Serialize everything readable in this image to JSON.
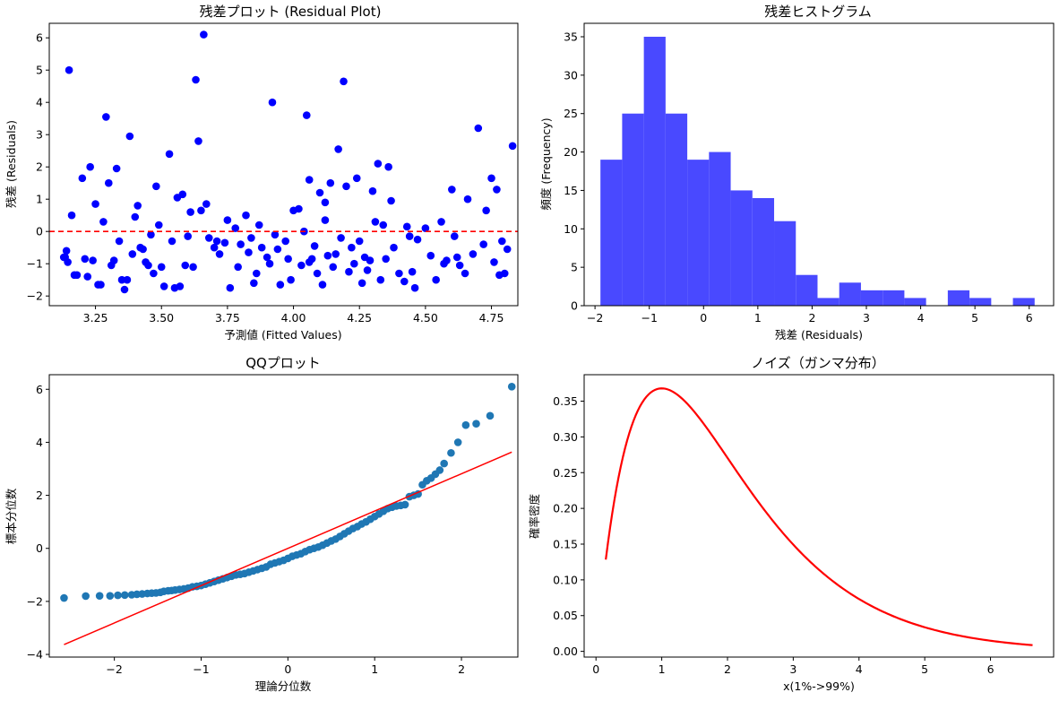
{
  "chart_data": [
    {
      "id": "residual",
      "type": "scatter",
      "title": "残差プロット (Residual Plot)",
      "xlabel": "予測値 (Fitted Values)",
      "ylabel": "残差 (Residuals)",
      "xlim": [
        3.075,
        4.85
      ],
      "ylim": [
        -2.3,
        6.45
      ],
      "xticks": [
        3.25,
        3.5,
        3.75,
        4.0,
        4.25,
        4.5,
        4.75
      ],
      "xtick_labels": [
        "3.25",
        "3.50",
        "3.75",
        "4.00",
        "4.25",
        "4.50",
        "4.75"
      ],
      "yticks": [
        -2,
        -1,
        0,
        1,
        2,
        3,
        4,
        5,
        6
      ],
      "ytick_labels": [
        "−2",
        "−1",
        "0",
        "1",
        "2",
        "3",
        "4",
        "5",
        "6"
      ],
      "point_color": "#0000ff",
      "reference_line": {
        "y": 0,
        "color": "#ff0000",
        "style": "dashed"
      },
      "points": [
        [
          3.15,
          5.0
        ],
        [
          3.14,
          -0.6
        ],
        [
          3.16,
          0.5
        ],
        [
          3.13,
          -0.8
        ],
        [
          3.17,
          -1.35
        ],
        [
          3.2,
          1.65
        ],
        [
          3.22,
          -1.4
        ],
        [
          3.23,
          2.0
        ],
        [
          3.24,
          -0.9
        ],
        [
          3.25,
          0.85
        ],
        [
          3.27,
          -1.65
        ],
        [
          3.29,
          3.55
        ],
        [
          3.3,
          1.5
        ],
        [
          3.31,
          -1.05
        ],
        [
          3.32,
          -0.9
        ],
        [
          3.33,
          1.95
        ],
        [
          3.34,
          -0.3
        ],
        [
          3.35,
          -1.5
        ],
        [
          3.36,
          -1.8
        ],
        [
          3.38,
          2.95
        ],
        [
          3.4,
          0.45
        ],
        [
          3.41,
          0.8
        ],
        [
          3.43,
          -0.55
        ],
        [
          3.44,
          -0.95
        ],
        [
          3.46,
          -0.1
        ],
        [
          3.48,
          1.4
        ],
        [
          3.49,
          0.2
        ],
        [
          3.5,
          -1.1
        ],
        [
          3.51,
          -1.7
        ],
        [
          3.53,
          2.4
        ],
        [
          3.55,
          -1.75
        ],
        [
          3.56,
          1.05
        ],
        [
          3.58,
          1.15
        ],
        [
          3.59,
          -1.05
        ],
        [
          3.6,
          -0.15
        ],
        [
          3.62,
          -1.1
        ],
        [
          3.63,
          4.7
        ],
        [
          3.64,
          2.8
        ],
        [
          3.65,
          0.65
        ],
        [
          3.66,
          6.1
        ],
        [
          3.68,
          -0.2
        ],
        [
          3.7,
          -0.5
        ],
        [
          3.72,
          -0.7
        ],
        [
          3.75,
          0.35
        ],
        [
          3.76,
          -1.75
        ],
        [
          3.78,
          0.1
        ],
        [
          3.8,
          -0.4
        ],
        [
          3.82,
          0.5
        ],
        [
          3.84,
          -0.2
        ],
        [
          3.85,
          -1.6
        ],
        [
          3.87,
          0.2
        ],
        [
          3.88,
          -0.5
        ],
        [
          3.9,
          -0.8
        ],
        [
          3.92,
          4.0
        ],
        [
          3.93,
          -0.1
        ],
        [
          3.95,
          -1.65
        ],
        [
          3.97,
          -0.3
        ],
        [
          3.99,
          -1.5
        ],
        [
          4.0,
          0.65
        ],
        [
          4.02,
          0.7
        ],
        [
          4.04,
          0.0
        ],
        [
          4.05,
          3.6
        ],
        [
          4.06,
          1.6
        ],
        [
          4.07,
          -0.85
        ],
        [
          4.08,
          -0.45
        ],
        [
          4.09,
          -1.3
        ],
        [
          4.1,
          1.2
        ],
        [
          4.11,
          -1.65
        ],
        [
          4.12,
          0.35
        ],
        [
          4.13,
          -0.75
        ],
        [
          4.14,
          1.5
        ],
        [
          4.15,
          -1.1
        ],
        [
          4.17,
          2.55
        ],
        [
          4.18,
          -0.2
        ],
        [
          4.19,
          4.65
        ],
        [
          4.2,
          1.4
        ],
        [
          4.22,
          -0.5
        ],
        [
          4.23,
          -1.0
        ],
        [
          4.24,
          1.65
        ],
        [
          4.25,
          -0.3
        ],
        [
          4.26,
          -1.6
        ],
        [
          4.27,
          -0.8
        ],
        [
          4.28,
          -1.2
        ],
        [
          4.3,
          1.25
        ],
        [
          4.31,
          0.3
        ],
        [
          4.32,
          2.1
        ],
        [
          4.33,
          -1.5
        ],
        [
          4.35,
          -0.85
        ],
        [
          4.36,
          2.0
        ],
        [
          4.37,
          0.95
        ],
        [
          4.38,
          -0.5
        ],
        [
          4.42,
          -1.55
        ],
        [
          4.43,
          0.15
        ],
        [
          4.45,
          -1.25
        ],
        [
          4.46,
          -1.75
        ],
        [
          4.47,
          -0.25
        ],
        [
          4.5,
          0.1
        ],
        [
          4.52,
          -0.75
        ],
        [
          4.54,
          -1.5
        ],
        [
          4.56,
          0.3
        ],
        [
          4.58,
          -0.9
        ],
        [
          4.6,
          1.3
        ],
        [
          4.61,
          -0.15
        ],
        [
          4.63,
          -1.05
        ],
        [
          4.65,
          -1.3
        ],
        [
          4.66,
          1.0
        ],
        [
          4.68,
          -0.7
        ],
        [
          4.7,
          3.2
        ],
        [
          4.72,
          -0.4
        ],
        [
          4.73,
          0.65
        ],
        [
          4.75,
          1.65
        ],
        [
          4.76,
          -0.95
        ],
        [
          4.77,
          1.3
        ],
        [
          4.78,
          -1.35
        ],
        [
          4.79,
          -0.3
        ],
        [
          4.81,
          -0.55
        ],
        [
          4.83,
          2.65
        ],
        [
          4.8,
          -1.3
        ],
        [
          4.62,
          -0.8
        ],
        [
          4.57,
          -1.0
        ],
        [
          4.44,
          -0.15
        ],
        [
          4.4,
          -1.3
        ],
        [
          4.34,
          0.2
        ],
        [
          4.29,
          -0.9
        ],
        [
          4.21,
          -1.25
        ],
        [
          4.16,
          -0.7
        ],
        [
          4.12,
          0.9
        ],
        [
          4.06,
          -0.95
        ],
        [
          4.03,
          -1.05
        ],
        [
          3.98,
          -0.85
        ],
        [
          3.94,
          -0.55
        ],
        [
          3.91,
          -1.0
        ],
        [
          3.86,
          -1.3
        ],
        [
          3.83,
          -0.65
        ],
        [
          3.79,
          -1.1
        ],
        [
          3.74,
          -0.35
        ],
        [
          3.71,
          -0.3
        ],
        [
          3.67,
          0.85
        ],
        [
          3.61,
          0.6
        ],
        [
          3.57,
          -1.7
        ],
        [
          3.54,
          -0.3
        ],
        [
          3.47,
          -1.3
        ],
        [
          3.45,
          -1.05
        ],
        [
          3.42,
          -0.5
        ],
        [
          3.39,
          -0.7
        ],
        [
          3.37,
          -1.5
        ],
        [
          3.28,
          0.3
        ],
        [
          3.26,
          -1.65
        ],
        [
          3.21,
          -0.85
        ],
        [
          3.18,
          -1.35
        ],
        [
          3.135,
          -0.8
        ],
        [
          3.145,
          -0.95
        ]
      ]
    },
    {
      "id": "histogram",
      "type": "bar",
      "title": "残差ヒストグラム",
      "xlabel": "残差 (Residuals)",
      "ylabel": "頻度 (Frequency)",
      "xlim": [
        -2.2,
        6.45
      ],
      "ylim": [
        0,
        36.75
      ],
      "xticks": [
        -2,
        -1,
        0,
        1,
        2,
        3,
        4,
        5,
        6
      ],
      "xtick_labels": [
        "−2",
        "−1",
        "0",
        "1",
        "2",
        "3",
        "4",
        "5",
        "6"
      ],
      "yticks": [
        0,
        5,
        10,
        15,
        20,
        25,
        30,
        35
      ],
      "ytick_labels": [
        "0",
        "5",
        "10",
        "15",
        "20",
        "25",
        "30",
        "35"
      ],
      "bar_color": "#4949ff",
      "bin_start": -1.9,
      "bin_width": 0.4,
      "values": [
        19,
        25,
        35,
        25,
        19,
        20,
        15,
        14,
        11,
        4,
        1,
        3,
        2,
        2,
        1,
        0,
        2,
        1,
        0,
        1
      ]
    },
    {
      "id": "qq",
      "type": "scatter",
      "title": "QQプロット",
      "xlabel": "理論分位数",
      "ylabel": "標本分位数",
      "xlim": [
        -2.75,
        2.65
      ],
      "ylim": [
        -4.1,
        6.55
      ],
      "xticks": [
        -2,
        -1,
        0,
        1,
        2
      ],
      "xtick_labels": [
        "−2",
        "−1",
        "0",
        "1",
        "2"
      ],
      "yticks": [
        -4,
        -2,
        0,
        2,
        4,
        6
      ],
      "ytick_labels": [
        "−4",
        "−2",
        "0",
        "2",
        "4",
        "6"
      ],
      "point_color": "#1f77b4",
      "fit_line": {
        "x": [
          -2.58,
          2.58
        ],
        "y": [
          -3.63,
          3.63
        ],
        "color": "#ff0000"
      },
      "points": [
        [
          -2.58,
          -1.87
        ],
        [
          -2.33,
          -1.8
        ],
        [
          -2.17,
          -1.79
        ],
        [
          -2.05,
          -1.79
        ],
        [
          -1.96,
          -1.77
        ],
        [
          -1.88,
          -1.76
        ],
        [
          -1.8,
          -1.75
        ],
        [
          -1.74,
          -1.73
        ],
        [
          -1.68,
          -1.72
        ],
        [
          -1.62,
          -1.7
        ],
        [
          -1.57,
          -1.69
        ],
        [
          -1.52,
          -1.68
        ],
        [
          -1.47,
          -1.66
        ],
        [
          -1.43,
          -1.62
        ],
        [
          -1.38,
          -1.6
        ],
        [
          -1.34,
          -1.59
        ],
        [
          -1.3,
          -1.57
        ],
        [
          -1.25,
          -1.55
        ],
        [
          -1.2,
          -1.53
        ],
        [
          -1.15,
          -1.5
        ],
        [
          -1.1,
          -1.45
        ],
        [
          -1.05,
          -1.43
        ],
        [
          -1.0,
          -1.4
        ],
        [
          -0.95,
          -1.35
        ],
        [
          -0.9,
          -1.3
        ],
        [
          -0.85,
          -1.25
        ],
        [
          -0.8,
          -1.2
        ],
        [
          -0.75,
          -1.15
        ],
        [
          -0.7,
          -1.1
        ],
        [
          -0.65,
          -1.05
        ],
        [
          -0.6,
          -1.0
        ],
        [
          -0.55,
          -0.98
        ],
        [
          -0.5,
          -0.95
        ],
        [
          -0.45,
          -0.9
        ],
        [
          -0.4,
          -0.85
        ],
        [
          -0.35,
          -0.8
        ],
        [
          -0.3,
          -0.75
        ],
        [
          -0.25,
          -0.7
        ],
        [
          -0.2,
          -0.6
        ],
        [
          -0.15,
          -0.55
        ],
        [
          -0.1,
          -0.5
        ],
        [
          -0.05,
          -0.45
        ],
        [
          0.0,
          -0.38
        ],
        [
          0.05,
          -0.3
        ],
        [
          0.1,
          -0.25
        ],
        [
          0.15,
          -0.2
        ],
        [
          0.2,
          -0.12
        ],
        [
          0.25,
          -0.05
        ],
        [
          0.3,
          0.0
        ],
        [
          0.35,
          0.05
        ],
        [
          0.4,
          0.12
        ],
        [
          0.45,
          0.2
        ],
        [
          0.5,
          0.28
        ],
        [
          0.55,
          0.35
        ],
        [
          0.6,
          0.45
        ],
        [
          0.65,
          0.55
        ],
        [
          0.7,
          0.65
        ],
        [
          0.75,
          0.75
        ],
        [
          0.8,
          0.82
        ],
        [
          0.85,
          0.92
        ],
        [
          0.9,
          1.0
        ],
        [
          0.95,
          1.1
        ],
        [
          1.0,
          1.2
        ],
        [
          1.05,
          1.3
        ],
        [
          1.1,
          1.4
        ],
        [
          1.15,
          1.5
        ],
        [
          1.2,
          1.55
        ],
        [
          1.25,
          1.6
        ],
        [
          1.3,
          1.62
        ],
        [
          1.35,
          1.65
        ],
        [
          1.4,
          1.95
        ],
        [
          1.45,
          2.0
        ],
        [
          1.5,
          2.05
        ],
        [
          1.55,
          2.4
        ],
        [
          1.6,
          2.55
        ],
        [
          1.65,
          2.65
        ],
        [
          1.7,
          2.8
        ],
        [
          1.75,
          2.95
        ],
        [
          1.8,
          3.2
        ],
        [
          1.88,
          3.6
        ],
        [
          1.96,
          4.0
        ],
        [
          2.05,
          4.65
        ],
        [
          2.17,
          4.7
        ],
        [
          2.33,
          5.0
        ],
        [
          2.58,
          6.1
        ]
      ]
    },
    {
      "id": "gamma",
      "type": "line",
      "title": "ノイズ（ガンマ分布）",
      "xlabel": "x(1%->99%)",
      "ylabel": "確率密度",
      "xlim": [
        -0.18,
        6.96
      ],
      "ylim": [
        -0.008,
        0.387
      ],
      "xticks": [
        0,
        1,
        2,
        3,
        4,
        5,
        6
      ],
      "xtick_labels": [
        "0",
        "1",
        "2",
        "3",
        "4",
        "5",
        "6"
      ],
      "yticks": [
        0.0,
        0.05,
        0.1,
        0.15,
        0.2,
        0.25,
        0.3,
        0.35
      ],
      "ytick_labels": [
        "0.00",
        "0.05",
        "0.10",
        "0.15",
        "0.20",
        "0.25",
        "0.30",
        "0.35"
      ],
      "line_color": "#ff0000",
      "shape_k": 2,
      "x_start": 0.149,
      "x_end": 6.64
    }
  ]
}
